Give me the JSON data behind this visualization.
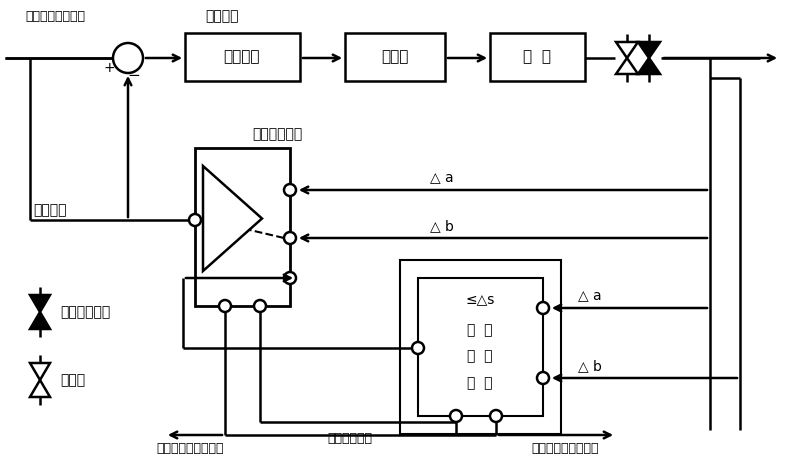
{
  "bg": "#ffffff",
  "lc": "#000000",
  "lw": 1.8,
  "figsize": [
    8.0,
    4.57
  ],
  "dpi": 100,
  "labels": {
    "target_thickness": "目标厚度偏差设定",
    "bias_correction": "偏差修正",
    "servo": "伺服系统",
    "hydraulic": "液压缸",
    "roller": "辊  缝",
    "signal_select_title": "信号选择模块",
    "measured_dev": "实测偏差",
    "delta_a1": "△ a",
    "delta_b1": "△ b",
    "delta_a2": "△ a",
    "delta_b2": "△ b",
    "leq_ds": "≤△s",
    "fault1": "故  障",
    "diag": "诊  断",
    "module": "模  块",
    "select_trigger": "选择触发指令",
    "convex_alarm": "凸度仪厚度信号报警",
    "thick_alarm": "测厚仪厚度信号报警",
    "convex_meter": "多功能凸度仪",
    "thick_meter": "测厚仪",
    "plus": "+",
    "minus": "−"
  }
}
